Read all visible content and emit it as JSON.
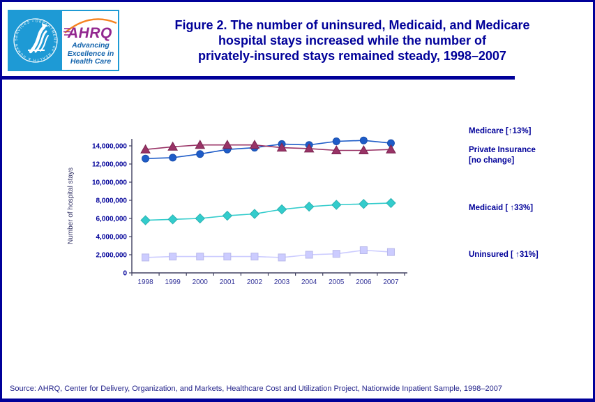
{
  "header": {
    "logo": {
      "seal_ring_text": "DEPARTMENT OF HEALTH & HUMAN SERVICES • USA",
      "acronym": "AHRQ",
      "tagline": "Advancing\nExcellence in\nHealth Care"
    },
    "title_lines": [
      "Figure 2. The number of uninsured, Medicaid, and Medicare",
      "hospital stays increased while the number of",
      "privately-insured stays remained steady, 1998–2007"
    ]
  },
  "chart_data": {
    "type": "line",
    "title": "",
    "ylabel": "Number of hospital stays",
    "xlabel": "",
    "x_labels": [
      "1998",
      "1999",
      "2000",
      "2001",
      "2002",
      "2003",
      "2004",
      "2005",
      "2006",
      "2007"
    ],
    "series": [
      {
        "name": "Medicare",
        "marker": "circle",
        "color": "#1e5cc8",
        "edge": "#1a4fae",
        "values_millions": [
          12.6,
          12.7,
          13.1,
          13.6,
          13.8,
          14.2,
          14.1,
          14.5,
          14.6,
          14.3
        ]
      },
      {
        "name": "Private Insurance",
        "marker": "triangle",
        "color": "#993366",
        "edge": "#7a2450",
        "values_millions": [
          13.6,
          13.9,
          14.1,
          14.1,
          14.1,
          13.8,
          13.7,
          13.5,
          13.5,
          13.6
        ]
      },
      {
        "name": "Medicaid",
        "marker": "diamond",
        "color": "#33cccc",
        "edge": "#2ab3b3",
        "values_millions": [
          5.8,
          5.9,
          6.0,
          6.3,
          6.5,
          7.0,
          7.3,
          7.5,
          7.6,
          7.7
        ]
      },
      {
        "name": "Uninsured",
        "marker": "square",
        "color": "#ccccff",
        "edge": "#b8b8ea",
        "values_millions": [
          1.7,
          1.8,
          1.8,
          1.8,
          1.8,
          1.7,
          2.0,
          2.1,
          2.5,
          2.3
        ]
      }
    ],
    "ylim_millions": [
      0,
      15
    ],
    "ytick_step_millions": 2,
    "ytick_labels": [
      "0",
      "2,000,000",
      "4,000,000",
      "6,000,000",
      "8,000,000",
      "10,000,000",
      "12,000,000",
      "14,000,000"
    ],
    "grid": false,
    "legend_position": "right"
  },
  "annotations": {
    "medicare": "Medicare  [↑13%]",
    "private": "Private Insurance\n[no change]",
    "medicaid": "Medicaid [ ↑33%]",
    "uninsured": "Uninsured  [ ↑31%]"
  },
  "footer": {
    "source": "Source: AHRQ, Center for Delivery, Organization, and Markets, Healthcare Cost and Utilization Project, Nationwide Inpatient Sample, 1998–2007"
  },
  "colors": {
    "accent_navy": "#000099",
    "hhs_cyan": "#1e9ad5",
    "ahrq_purple": "#92278f",
    "arc_orange": "#f58220",
    "tagline_blue": "#1565ad"
  }
}
